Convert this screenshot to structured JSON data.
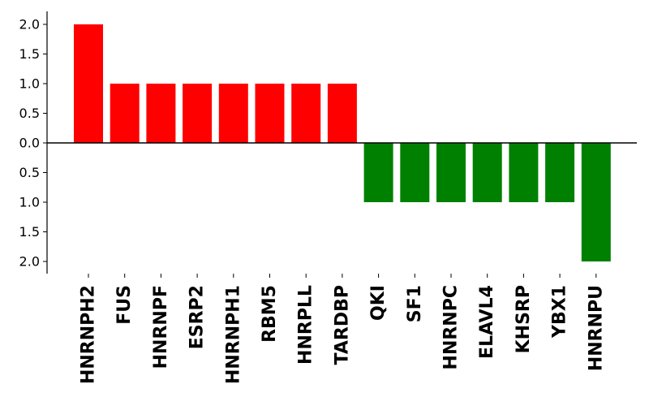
{
  "chart_data": {
    "type": "bar",
    "title": "",
    "xlabel": "",
    "ylabel": "",
    "categories": [
      "HNRNPH2",
      "FUS",
      "HNRNPF",
      "ESRP2",
      "HNRNPH1",
      "RBM5",
      "HNRPLL",
      "TARDBP",
      "QKI",
      "SF1",
      "HNRNPC",
      "ELAVL4",
      "KHSRP",
      "YBX1",
      "HNRNPU"
    ],
    "values": [
      2,
      1,
      1,
      1,
      1,
      1,
      1,
      1,
      -1,
      -1,
      -1,
      -1,
      -1,
      -1,
      -2
    ],
    "ylim": [
      -2.2,
      2.2
    ],
    "yticks": [
      2,
      1.5,
      1,
      0.5,
      0,
      -0.5,
      -1,
      -1.5,
      -2
    ],
    "ytick_labels": [
      "2.0",
      "1.5",
      "1.0",
      "0.5",
      "0.0",
      "0.5",
      "1.0",
      "1.5",
      "2.0"
    ],
    "colors": {
      "positive": "#ff0000",
      "negative": "#008000",
      "axis": "#000000"
    },
    "grid": false,
    "legend": "none"
  }
}
